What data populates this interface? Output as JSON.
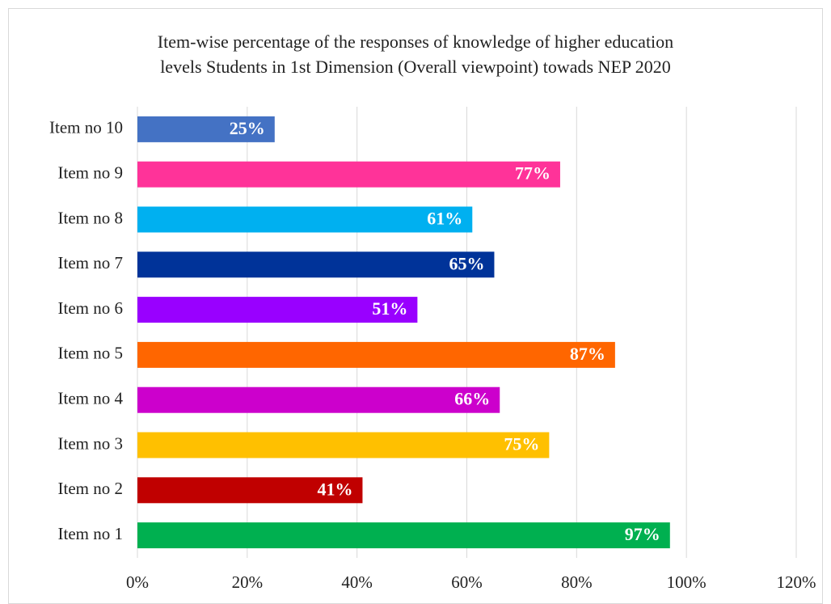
{
  "chart_data": {
    "type": "barh",
    "title": "Item-wise percentage of the responses of knowledge of higher education levels Students in 1st Dimension (Overall viewpoint) towads NEP 2020",
    "categories": [
      "Item no 1",
      "Item no 2",
      "Item no 3",
      "Item no 4",
      "Item no 5",
      "Item no 6",
      "Item no 7",
      "Item no 8",
      "Item no 9",
      "Item no 10"
    ],
    "values": [
      97,
      41,
      75,
      66,
      87,
      51,
      65,
      61,
      77,
      25
    ],
    "value_labels": [
      "97%",
      "41%",
      "75%",
      "66%",
      "87%",
      "51%",
      "65%",
      "61%",
      "77%",
      "25%"
    ],
    "colors": [
      "#00b050",
      "#c00000",
      "#ffc000",
      "#cc00cc",
      "#ff6600",
      "#9900ff",
      "#003399",
      "#00b0f0",
      "#ff3399",
      "#4472c4"
    ],
    "xlim": [
      0,
      120
    ],
    "xticks": [
      {
        "value": 0,
        "label": "0%"
      },
      {
        "value": 20,
        "label": "20%"
      },
      {
        "value": 40,
        "label": "40%"
      },
      {
        "value": 60,
        "label": "60%"
      },
      {
        "value": 80,
        "label": "80%"
      },
      {
        "value": 100,
        "label": "100%"
      },
      {
        "value": 120,
        "label": "120%"
      }
    ],
    "grid": true
  }
}
